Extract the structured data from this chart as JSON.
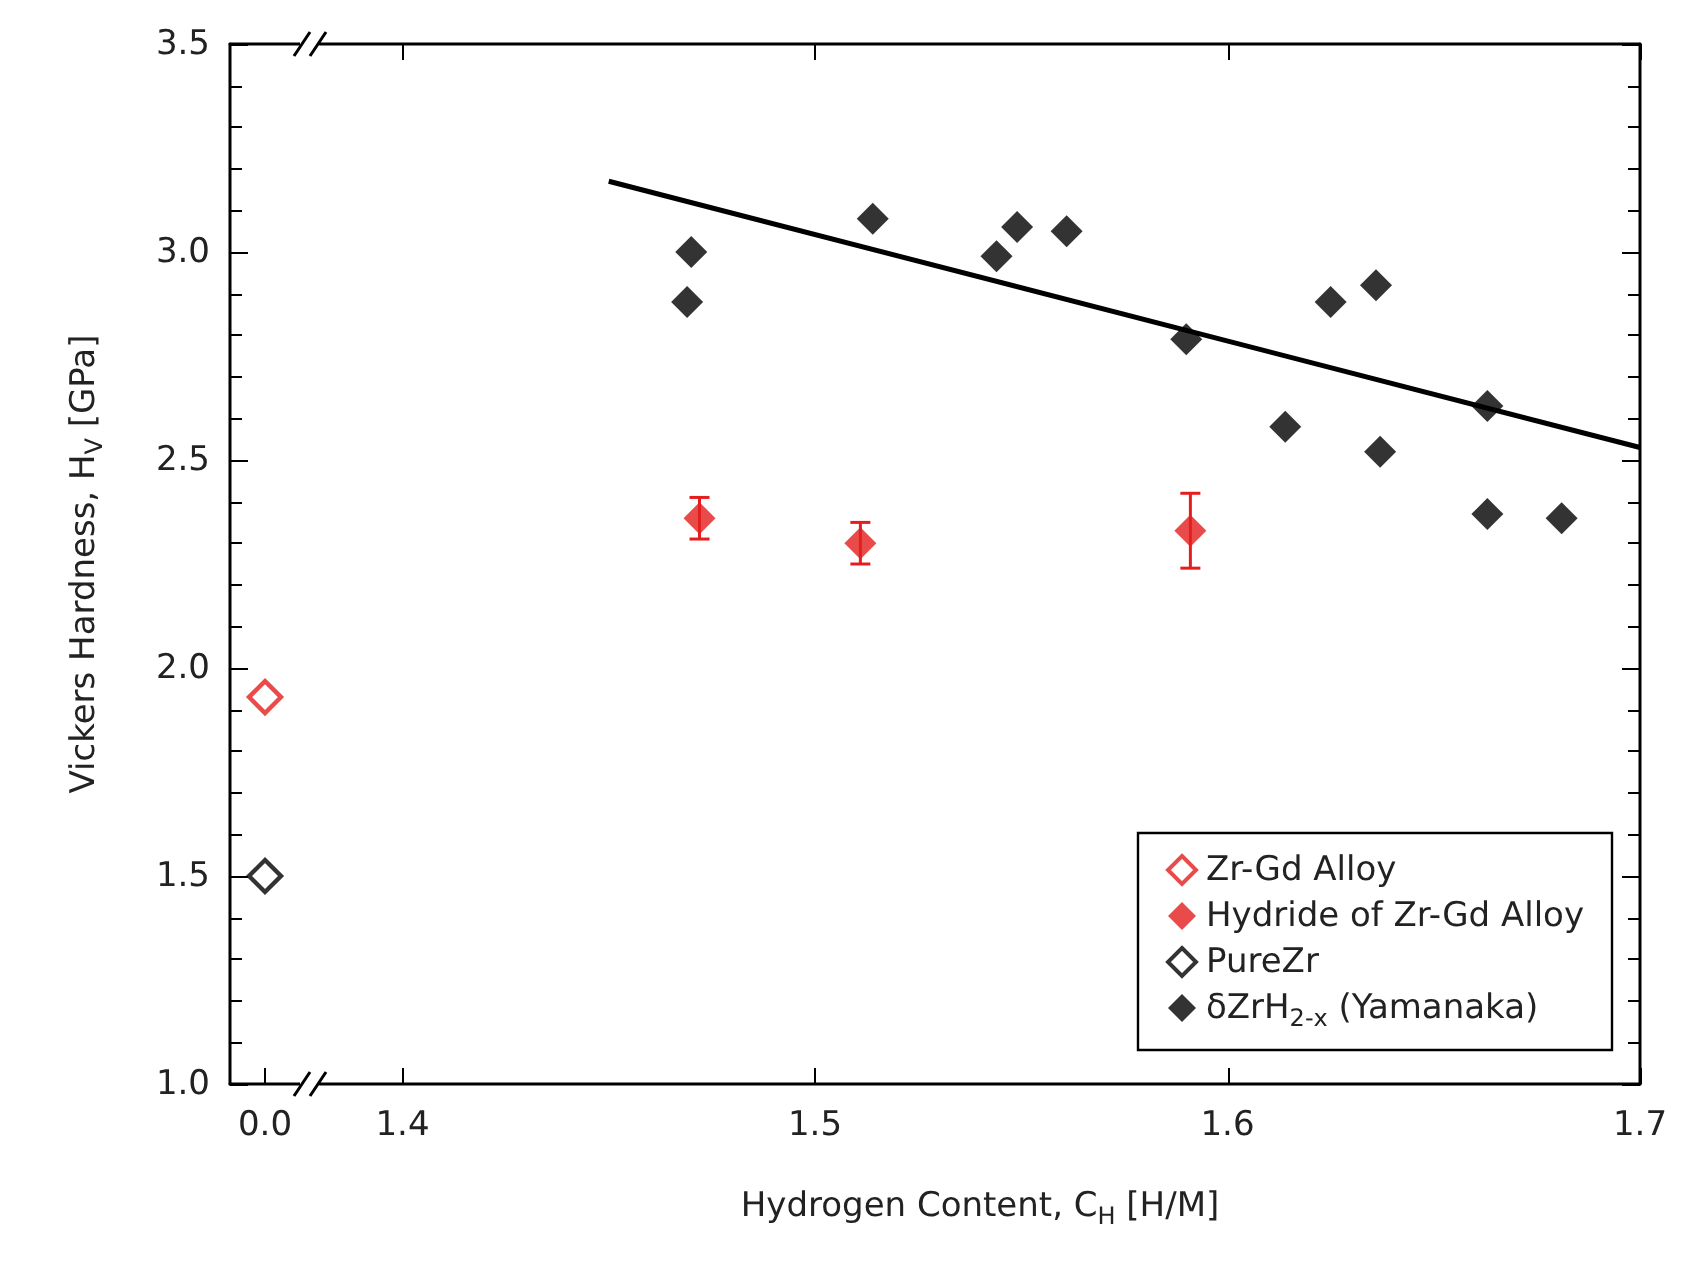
{
  "chart_data": [
    {
      "type": "scatter",
      "ylabel": "Vickers Hardness, H$_{V}$ [GPa]",
      "categories": [
        "0.0"
      ],
      "ylim": [
        1,
        3.5
      ],
      "yticks": [
        {
          "value": 1,
          "label": "1.0"
        },
        {
          "value": 1.5,
          "label": "1.5"
        },
        {
          "value": 2,
          "label": "2.0"
        },
        {
          "value": 2.5,
          "label": "2.5"
        },
        {
          "value": 3,
          "label": "3.0"
        },
        {
          "value": 3.5,
          "label": "3.5"
        }
      ],
      "marker": "diamond",
      "grid": false,
      "series": [
        {
          "name": "Zr-Gd Alloy",
          "color": "#e41e1e",
          "values": [
            1.93
          ]
        },
        {
          "name": "PureZr",
          "color": "#000000",
          "values": [
            1.5
          ]
        }
      ]
    },
    {
      "type": "scatter",
      "xlabel": "Hydrogen Content, C$_{H}$ [H/M]",
      "xlim": [
        1.38,
        1.7
      ],
      "xticks": [
        1.4,
        1.5,
        1.6,
        1.7
      ],
      "ylim": [
        1,
        3.5
      ],
      "tick_labels": "x",
      "marker": "diamond",
      "grid": false,
      "legend": "bottom right",
      "series": [
        {
          "name": "Hydride of Zr-Gd Alloy",
          "color": "#e41e1e",
          "x": [
            1.472,
            1.511,
            1.591
          ],
          "values": [
            2.36,
            2.3,
            2.33
          ],
          "errors": [
            0.05,
            0.05,
            0.09
          ]
        },
        {
          "name": "δZrH$_{2-x}$ (Yamanaka)",
          "color": "#000000",
          "x": [
            1.47,
            1.469,
            1.514,
            1.549,
            1.544,
            1.561,
            1.59,
            1.625,
            1.636,
            1.614,
            1.637,
            1.663,
            1.663,
            1.681
          ],
          "values": [
            3.0,
            2.88,
            3.08,
            3.06,
            2.99,
            3.05,
            2.79,
            2.88,
            2.92,
            2.58,
            2.52,
            2.63,
            2.37,
            2.36
          ]
        },
        {
          "type": "line",
          "color": "#000000",
          "marker": "none",
          "x": [
            1.45,
            1.7
          ],
          "values": [
            3.17,
            2.53
          ]
        }
      ]
    }
  ]
}
